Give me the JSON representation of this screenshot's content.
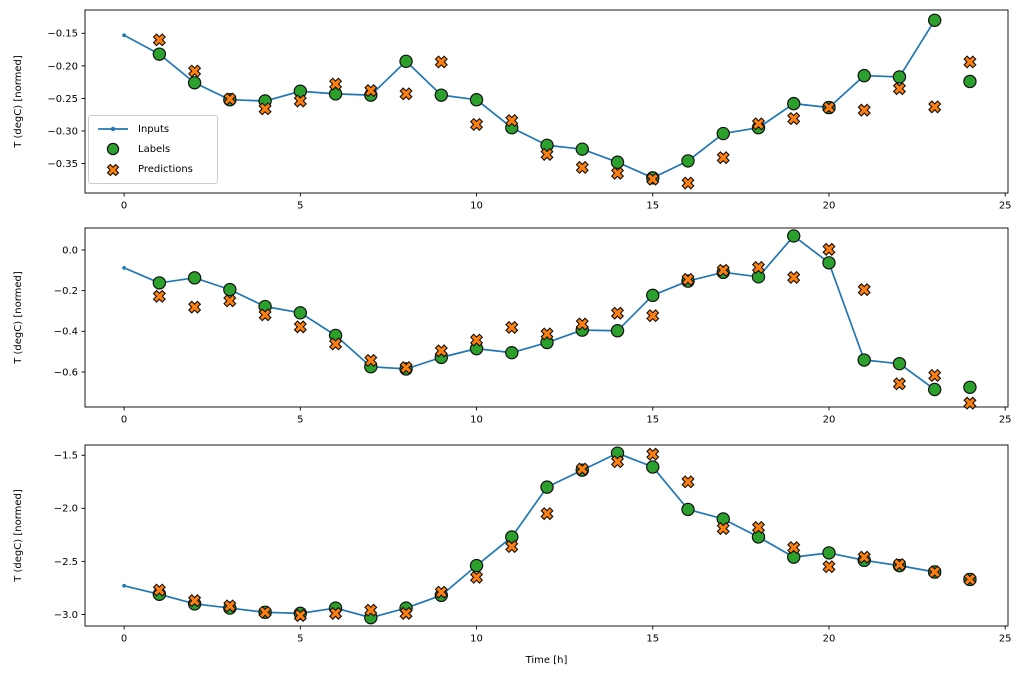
{
  "figure": {
    "xlabel": "Time [h]",
    "colors": {
      "inputs": "#1f77b4",
      "labels": "#2ca02c",
      "predictions": "#ff7f0e",
      "marker_edge": "#111111",
      "axis": "#000000",
      "legend_border": "#cccccc"
    }
  },
  "chart_data": [
    {
      "type": "line+scatter",
      "ylabel": "T (degC) [normed]",
      "xlabel": "",
      "grid": false,
      "legend": {
        "position": "upper left",
        "entries": [
          "Inputs",
          "Labels",
          "Predictions"
        ]
      },
      "xlim": [
        -1.11,
        25.08
      ],
      "ylim": [
        -0.3953,
        -0.1142
      ],
      "xticks": [
        0,
        5,
        10,
        15,
        20,
        25
      ],
      "xtick_labels": [
        "0",
        "5",
        "10",
        "15",
        "20",
        "25"
      ],
      "yticks": [
        -0.15,
        -0.2,
        -0.25,
        -0.3,
        -0.35
      ],
      "ytick_labels": [
        "−0.15",
        "−0.20",
        "−0.25",
        "−0.30",
        "−0.35"
      ],
      "series": [
        {
          "name": "Inputs",
          "style": "line+dot",
          "x": [
            0,
            1,
            2,
            3,
            4,
            5,
            6,
            7,
            8,
            9,
            10,
            11,
            12,
            13,
            14,
            15,
            16,
            17,
            18,
            19,
            20,
            21,
            22,
            23
          ],
          "y": [
            -0.153,
            -0.182,
            -0.226,
            -0.252,
            -0.254,
            -0.239,
            -0.243,
            -0.245,
            -0.193,
            -0.245,
            -0.252,
            -0.295,
            -0.322,
            -0.328,
            -0.348,
            -0.372,
            -0.346,
            -0.304,
            -0.295,
            -0.258,
            -0.264,
            -0.215,
            -0.217,
            -0.13
          ]
        },
        {
          "name": "Labels",
          "style": "circle",
          "x": [
            1,
            2,
            3,
            4,
            5,
            6,
            7,
            8,
            9,
            10,
            11,
            12,
            13,
            14,
            15,
            16,
            17,
            18,
            19,
            20,
            21,
            22,
            23,
            24
          ],
          "y": [
            -0.182,
            -0.226,
            -0.252,
            -0.254,
            -0.239,
            -0.243,
            -0.245,
            -0.193,
            -0.245,
            -0.252,
            -0.295,
            -0.322,
            -0.328,
            -0.348,
            -0.372,
            -0.346,
            -0.304,
            -0.295,
            -0.258,
            -0.264,
            -0.215,
            -0.217,
            -0.13,
            -0.224
          ]
        },
        {
          "name": "Predictions",
          "style": "x",
          "x": [
            1,
            2,
            3,
            4,
            5,
            6,
            7,
            8,
            9,
            10,
            11,
            12,
            13,
            14,
            15,
            16,
            17,
            18,
            19,
            20,
            21,
            22,
            23,
            24
          ],
          "y": [
            -0.16,
            -0.208,
            -0.251,
            -0.266,
            -0.254,
            -0.228,
            -0.238,
            -0.243,
            -0.194,
            -0.29,
            -0.284,
            -0.336,
            -0.356,
            -0.365,
            -0.374,
            -0.38,
            -0.341,
            -0.289,
            -0.281,
            -0.264,
            -0.268,
            -0.235,
            -0.263,
            -0.194
          ]
        }
      ]
    },
    {
      "type": "line+scatter",
      "ylabel": "T (degC) [normed]",
      "xlabel": "",
      "grid": false,
      "xlim": [
        -1.11,
        25.08
      ],
      "ylim": [
        -0.772,
        0.108
      ],
      "xticks": [
        0,
        5,
        10,
        15,
        20,
        25
      ],
      "xtick_labels": [
        "0",
        "5",
        "10",
        "15",
        "20",
        "25"
      ],
      "yticks": [
        0.0,
        -0.2,
        -0.4,
        -0.6
      ],
      "ytick_labels": [
        "0.0",
        "−0.2",
        "−0.4",
        "−0.6"
      ],
      "series": [
        {
          "name": "Inputs",
          "style": "line+dot",
          "x": [
            0,
            1,
            2,
            3,
            4,
            5,
            6,
            7,
            8,
            9,
            10,
            11,
            12,
            13,
            14,
            15,
            16,
            17,
            18,
            19,
            20,
            21,
            22,
            23
          ],
          "y": [
            -0.088,
            -0.162,
            -0.137,
            -0.195,
            -0.278,
            -0.309,
            -0.42,
            -0.574,
            -0.585,
            -0.528,
            -0.485,
            -0.505,
            -0.455,
            -0.394,
            -0.397,
            -0.223,
            -0.153,
            -0.11,
            -0.132,
            0.069,
            -0.063,
            -0.541,
            -0.559,
            -0.686
          ]
        },
        {
          "name": "Labels",
          "style": "circle",
          "x": [
            1,
            2,
            3,
            4,
            5,
            6,
            7,
            8,
            9,
            10,
            11,
            12,
            13,
            14,
            15,
            16,
            17,
            18,
            19,
            20,
            21,
            22,
            23,
            24
          ],
          "y": [
            -0.162,
            -0.137,
            -0.195,
            -0.278,
            -0.309,
            -0.42,
            -0.574,
            -0.585,
            -0.528,
            -0.485,
            -0.505,
            -0.455,
            -0.394,
            -0.397,
            -0.223,
            -0.153,
            -0.11,
            -0.132,
            0.069,
            -0.063,
            -0.541,
            -0.559,
            -0.686,
            -0.675
          ]
        },
        {
          "name": "Predictions",
          "style": "x",
          "x": [
            1,
            2,
            3,
            4,
            5,
            6,
            7,
            8,
            9,
            10,
            11,
            12,
            13,
            14,
            15,
            16,
            17,
            18,
            19,
            20,
            21,
            22,
            23,
            24
          ],
          "y": [
            -0.228,
            -0.281,
            -0.25,
            -0.319,
            -0.378,
            -0.462,
            -0.543,
            -0.578,
            -0.496,
            -0.443,
            -0.381,
            -0.413,
            -0.364,
            -0.311,
            -0.323,
            -0.145,
            -0.1,
            -0.086,
            -0.135,
            0.003,
            -0.195,
            -0.658,
            -0.617,
            -0.753
          ]
        }
      ]
    },
    {
      "type": "line+scatter",
      "ylabel": "T (degC) [normed]",
      "xlabel": "Time [h]",
      "grid": false,
      "xlim": [
        -1.11,
        25.08
      ],
      "ylim": [
        -3.109,
        -1.403
      ],
      "xticks": [
        0,
        5,
        10,
        15,
        20,
        25
      ],
      "xtick_labels": [
        "0",
        "5",
        "10",
        "15",
        "20",
        "25"
      ],
      "yticks": [
        -1.5,
        -2.0,
        -2.5,
        -3.0
      ],
      "ytick_labels": [
        "−1.5",
        "−2.0",
        "−2.5",
        "−3.0"
      ],
      "series": [
        {
          "name": "Inputs",
          "style": "line+dot",
          "x": [
            0,
            1,
            2,
            3,
            4,
            5,
            6,
            7,
            8,
            9,
            10,
            11,
            12,
            13,
            14,
            15,
            16,
            17,
            18,
            19,
            20,
            21,
            22,
            23
          ],
          "y": [
            -2.73,
            -2.81,
            -2.9,
            -2.94,
            -2.98,
            -2.99,
            -2.94,
            -3.03,
            -2.94,
            -2.82,
            -2.54,
            -2.27,
            -1.8,
            -1.64,
            -1.48,
            -1.61,
            -2.01,
            -2.1,
            -2.27,
            -2.46,
            -2.42,
            -2.49,
            -2.54,
            -2.6
          ]
        },
        {
          "name": "Labels",
          "style": "circle",
          "x": [
            1,
            2,
            3,
            4,
            5,
            6,
            7,
            8,
            9,
            10,
            11,
            12,
            13,
            14,
            15,
            16,
            17,
            18,
            19,
            20,
            21,
            22,
            23,
            24
          ],
          "y": [
            -2.81,
            -2.9,
            -2.94,
            -2.98,
            -2.99,
            -2.94,
            -3.03,
            -2.94,
            -2.82,
            -2.54,
            -2.27,
            -1.8,
            -1.64,
            -1.48,
            -1.61,
            -2.01,
            -2.1,
            -2.27,
            -2.46,
            -2.42,
            -2.49,
            -2.54,
            -2.6,
            -2.67
          ]
        },
        {
          "name": "Predictions",
          "style": "x",
          "x": [
            1,
            2,
            3,
            4,
            5,
            6,
            7,
            8,
            9,
            10,
            11,
            12,
            13,
            14,
            15,
            16,
            17,
            18,
            19,
            20,
            21,
            22,
            23,
            24
          ],
          "y": [
            -2.77,
            -2.87,
            -2.92,
            -2.98,
            -3.01,
            -2.99,
            -2.96,
            -2.99,
            -2.79,
            -2.65,
            -2.36,
            -2.05,
            -1.63,
            -1.56,
            -1.49,
            -1.75,
            -2.19,
            -2.18,
            -2.37,
            -2.55,
            -2.46,
            -2.53,
            -2.6,
            -2.67
          ]
        }
      ]
    }
  ]
}
